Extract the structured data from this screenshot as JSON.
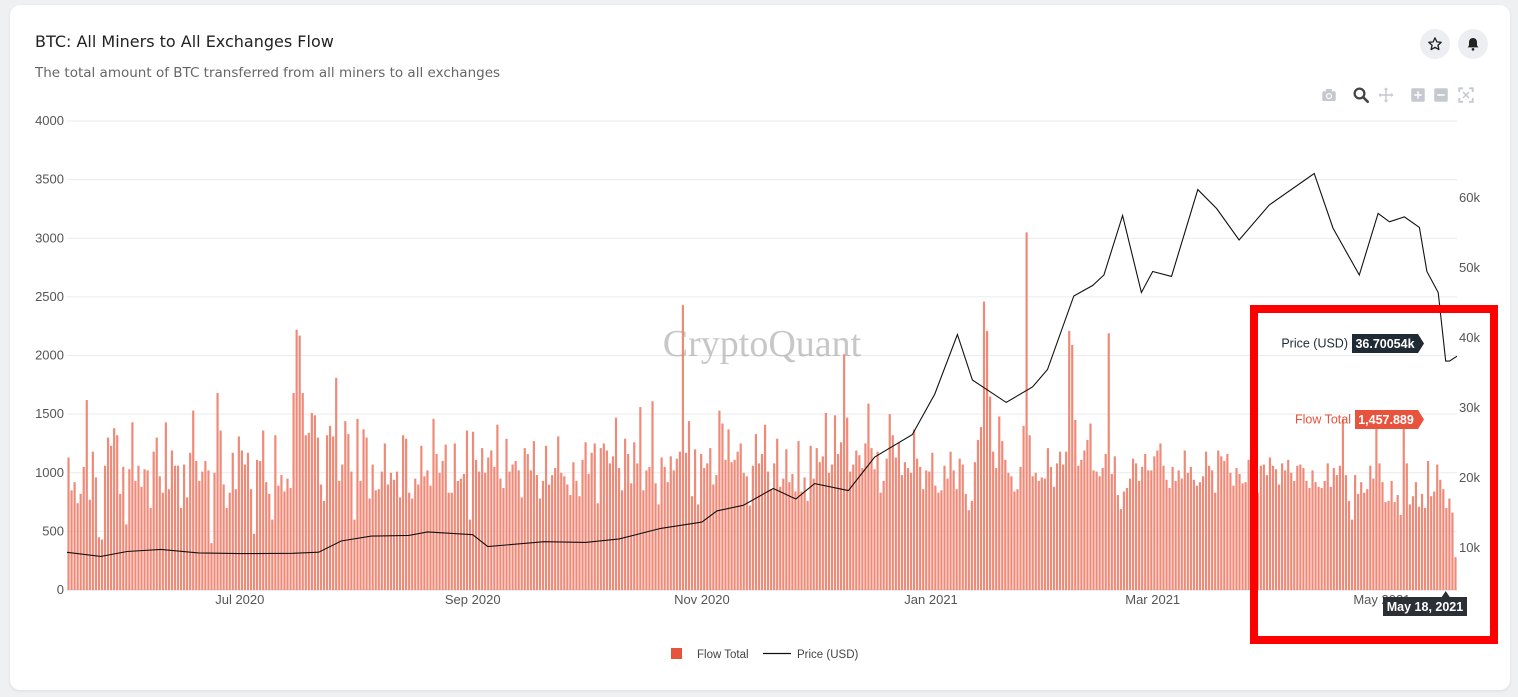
{
  "header": {
    "title": "BTC: All Miners to All Exchanges Flow",
    "subtitle": "The total amount of BTC transferred from all miners to all exchanges"
  },
  "actions": {
    "star_icon": "star-icon",
    "bell_icon": "bell-icon"
  },
  "toolbar": [
    "camera-icon",
    "zoom-icon",
    "pan-icon",
    "zoom-in-icon",
    "zoom-out-icon",
    "autoscale-icon"
  ],
  "watermark": "CryptoQuant",
  "colors": {
    "bar": "#f08a78",
    "bar_edge": "#e46b57",
    "line": "#111111",
    "flow_tag": "#e8533d",
    "price_tag": "#1f2a35",
    "highlight": "#ff0000"
  },
  "hover": {
    "price_label": "Price (USD)",
    "price_value": "36.70054k",
    "flow_label": "Flow Total",
    "flow_value": "1,457.889",
    "date": "May 18, 2021"
  },
  "chart_data": {
    "type": "bar",
    "start_date": "2020-05-16",
    "end_date": "2021-05-21",
    "x_ticks": [
      "Jul 2020",
      "Sep 2020",
      "Nov 2020",
      "Jan 2021",
      "Mar 2021",
      "May 2021"
    ],
    "y_left": {
      "ticks": [
        0,
        500,
        1000,
        1500,
        2000,
        2500,
        3000,
        3500,
        4000
      ],
      "ylim": [
        0,
        4000
      ]
    },
    "y_right": {
      "ticks": [
        "10k",
        "20k",
        "30k",
        "40k",
        "50k",
        "60k"
      ],
      "ylim": [
        4000,
        71000
      ]
    },
    "legend": [
      "Flow Total",
      "Price (USD)"
    ],
    "grid": true,
    "series": [
      {
        "name": "Flow Total",
        "kind": "bar",
        "axis": "left",
        "values": [
          1130,
          850,
          920,
          740,
          820,
          1050,
          1620,
          770,
          1180,
          960,
          450,
          430,
          1060,
          1300,
          1230,
          1380,
          1320,
          820,
          1050,
          560,
          1030,
          1430,
          930,
          1060,
          880,
          1030,
          1020,
          700,
          1180,
          1300,
          970,
          830,
          1430,
          860,
          1190,
          1060,
          1060,
          700,
          1070,
          790,
          1170,
          1530,
          1100,
          930,
          1010,
          1100,
          1020,
          400,
          1000,
          1680,
          1360,
          900,
          700,
          830,
          1170,
          860,
          1310,
          1190,
          1070,
          1170,
          860,
          480,
          1110,
          1100,
          1360,
          920,
          820,
          600,
          1320,
          890,
          980,
          840,
          950,
          870,
          1680,
          2220,
          2170,
          1680,
          1320,
          1340,
          1510,
          1490,
          1300,
          900,
          760,
          1320,
          1400,
          1310,
          1810,
          930,
          1070,
          1440,
          1330,
          1010,
          600,
          1460,
          930,
          1370,
          1300,
          780,
          1070,
          850,
          860,
          1010,
          1250,
          900,
          1000,
          940,
          1010,
          790,
          1320,
          1290,
          830,
          780,
          950,
          900,
          1230,
          970,
          1020,
          890,
          1460,
          1160,
          1000,
          1100,
          1240,
          830,
          830,
          1250,
          930,
          950,
          990,
          1360,
          600,
          1350,
          1110,
          1010,
          1210,
          1000,
          1130,
          1190,
          1050,
          1410,
          950,
          870,
          1290,
          1010,
          1070,
          1100,
          1020,
          790,
          1210,
          1160,
          1020,
          1270,
          980,
          780,
          930,
          1230,
          900,
          980,
          1040,
          1310,
          1000,
          970,
          900,
          810,
          1090,
          930,
          800,
          1110,
          1260,
          990,
          1170,
          1250,
          740,
          1210,
          1250,
          1190,
          1080,
          1140,
          1470,
          1040,
          850,
          1290,
          1160,
          910,
          1260,
          1080,
          1560,
          850,
          1020,
          1050,
          1610,
          910,
          730,
          1130,
          1050,
          920,
          1140,
          1020,
          1120,
          1180,
          2430,
          1170,
          1440,
          800,
          1200,
          730,
          1160,
          1040,
          1080,
          1210,
          900,
          980,
          1530,
          1420,
          1110,
          1370,
          1090,
          1110,
          1180,
          1250,
          1000,
          970,
          720,
          1060,
          1330,
          1080,
          1160,
          1410,
          1010,
          860,
          1080,
          1290,
          880,
          950,
          1200,
          920,
          990,
          840,
          1270,
          840,
          960,
          760,
          1230,
          950,
          1210,
          1090,
          1140,
          1510,
          1000,
          1070,
          1490,
          1160,
          1260,
          2010,
          1470,
          1010,
          1070,
          1190,
          1150,
          1040,
          1250,
          1590,
          1210,
          1030,
          1180,
          830,
          930,
          1120,
          1500,
          1320,
          1130,
          1260,
          980,
          1090,
          1040,
          1000,
          1370,
          1120,
          1050,
          860,
          1020,
          1010,
          1170,
          890,
          830,
          850,
          1060,
          950,
          1180,
          1020,
          860,
          1120,
          1070,
          820,
          680,
          760,
          1090,
          1280,
          1390,
          2460,
          2210,
          1650,
          1180,
          1040,
          1480,
          1270,
          1110,
          1000,
          970,
          840,
          860,
          1050,
          1400,
          3050,
          1320,
          970,
          1000,
          930,
          960,
          950,
          1210,
          1050,
          880,
          1080,
          1180,
          1070,
          1180,
          2210,
          2090,
          1450,
          1060,
          1110,
          1190,
          1280,
          1420,
          1020,
          1010,
          970,
          1040,
          1160,
          2190,
          990,
          1140,
          810,
          690,
          840,
          870,
          950,
          1120,
          1080,
          930,
          1050,
          1160,
          1020,
          1020,
          1140,
          1190,
          1250,
          1060,
          940,
          870,
          1050,
          930,
          1020,
          950,
          1190,
          1000,
          1050,
          940,
          890,
          920,
          970,
          1180,
          1060,
          1020,
          830,
          1190,
          1140,
          1100,
          1160,
          1000,
          890,
          1040,
          990,
          910,
          920,
          1110,
          980,
          760,
          830,
          1060,
          1070,
          980,
          1130,
          1060,
          1030,
          900,
          1080,
          1020,
          1110,
          1000,
          930,
          1060,
          1070,
          1040,
          930,
          870,
          1020,
          920,
          880,
          870,
          930,
          1080,
          880,
          1040,
          980,
          1060,
          1460,
          980,
          760,
          600,
          980,
          820,
          920,
          830,
          860,
          1060,
          950,
          1460,
          1080,
          920,
          750,
          760,
          930,
          750,
          810,
          640,
          1460,
          1080,
          730,
          800,
          920,
          710,
          820,
          700,
          1100,
          800,
          840,
          1070,
          940,
          860,
          700,
          780,
          660,
          280
        ],
        "values_note_hidden": ""
      },
      {
        "name": "Price (USD)",
        "kind": "line",
        "axis": "right",
        "points": [
          [
            "2020-05-16",
            9380
          ],
          [
            "2020-05-25",
            8800
          ],
          [
            "2020-06-01",
            9500
          ],
          [
            "2020-06-10",
            9800
          ],
          [
            "2020-06-20",
            9300
          ],
          [
            "2020-07-01",
            9200
          ],
          [
            "2020-07-15",
            9250
          ],
          [
            "2020-07-22",
            9400
          ],
          [
            "2020-07-28",
            11000
          ],
          [
            "2020-08-05",
            11700
          ],
          [
            "2020-08-15",
            11800
          ],
          [
            "2020-08-20",
            12300
          ],
          [
            "2020-09-01",
            11900
          ],
          [
            "2020-09-05",
            10200
          ],
          [
            "2020-09-20",
            10900
          ],
          [
            "2020-10-01",
            10800
          ],
          [
            "2020-10-10",
            11300
          ],
          [
            "2020-10-21",
            12800
          ],
          [
            "2020-11-01",
            13700
          ],
          [
            "2020-11-05",
            15300
          ],
          [
            "2020-11-12",
            16100
          ],
          [
            "2020-11-20",
            18500
          ],
          [
            "2020-11-26",
            17000
          ],
          [
            "2020-12-01",
            19200
          ],
          [
            "2020-12-10",
            18200
          ],
          [
            "2020-12-17",
            23000
          ],
          [
            "2020-12-27",
            26200
          ],
          [
            "2021-01-02",
            32000
          ],
          [
            "2021-01-08",
            40500
          ],
          [
            "2021-01-12",
            34000
          ],
          [
            "2021-01-21",
            30800
          ],
          [
            "2021-01-28",
            33000
          ],
          [
            "2021-02-01",
            35500
          ],
          [
            "2021-02-08",
            46000
          ],
          [
            "2021-02-13",
            47500
          ],
          [
            "2021-02-16",
            49000
          ],
          [
            "2021-02-21",
            57500
          ],
          [
            "2021-02-26",
            46500
          ],
          [
            "2021-03-01",
            49500
          ],
          [
            "2021-03-06",
            48800
          ],
          [
            "2021-03-13",
            61200
          ],
          [
            "2021-03-18",
            58500
          ],
          [
            "2021-03-24",
            54000
          ],
          [
            "2021-04-01",
            59000
          ],
          [
            "2021-04-13",
            63500
          ],
          [
            "2021-04-18",
            55700
          ],
          [
            "2021-04-25",
            49000
          ],
          [
            "2021-04-30",
            57800
          ],
          [
            "2021-05-03",
            56600
          ],
          [
            "2021-05-07",
            57300
          ],
          [
            "2021-05-11",
            55800
          ],
          [
            "2021-05-13",
            49500
          ],
          [
            "2021-05-16",
            46500
          ],
          [
            "2021-05-18",
            36700
          ],
          [
            "2021-05-19",
            36700
          ],
          [
            "2021-05-21",
            37400
          ]
        ]
      }
    ]
  }
}
